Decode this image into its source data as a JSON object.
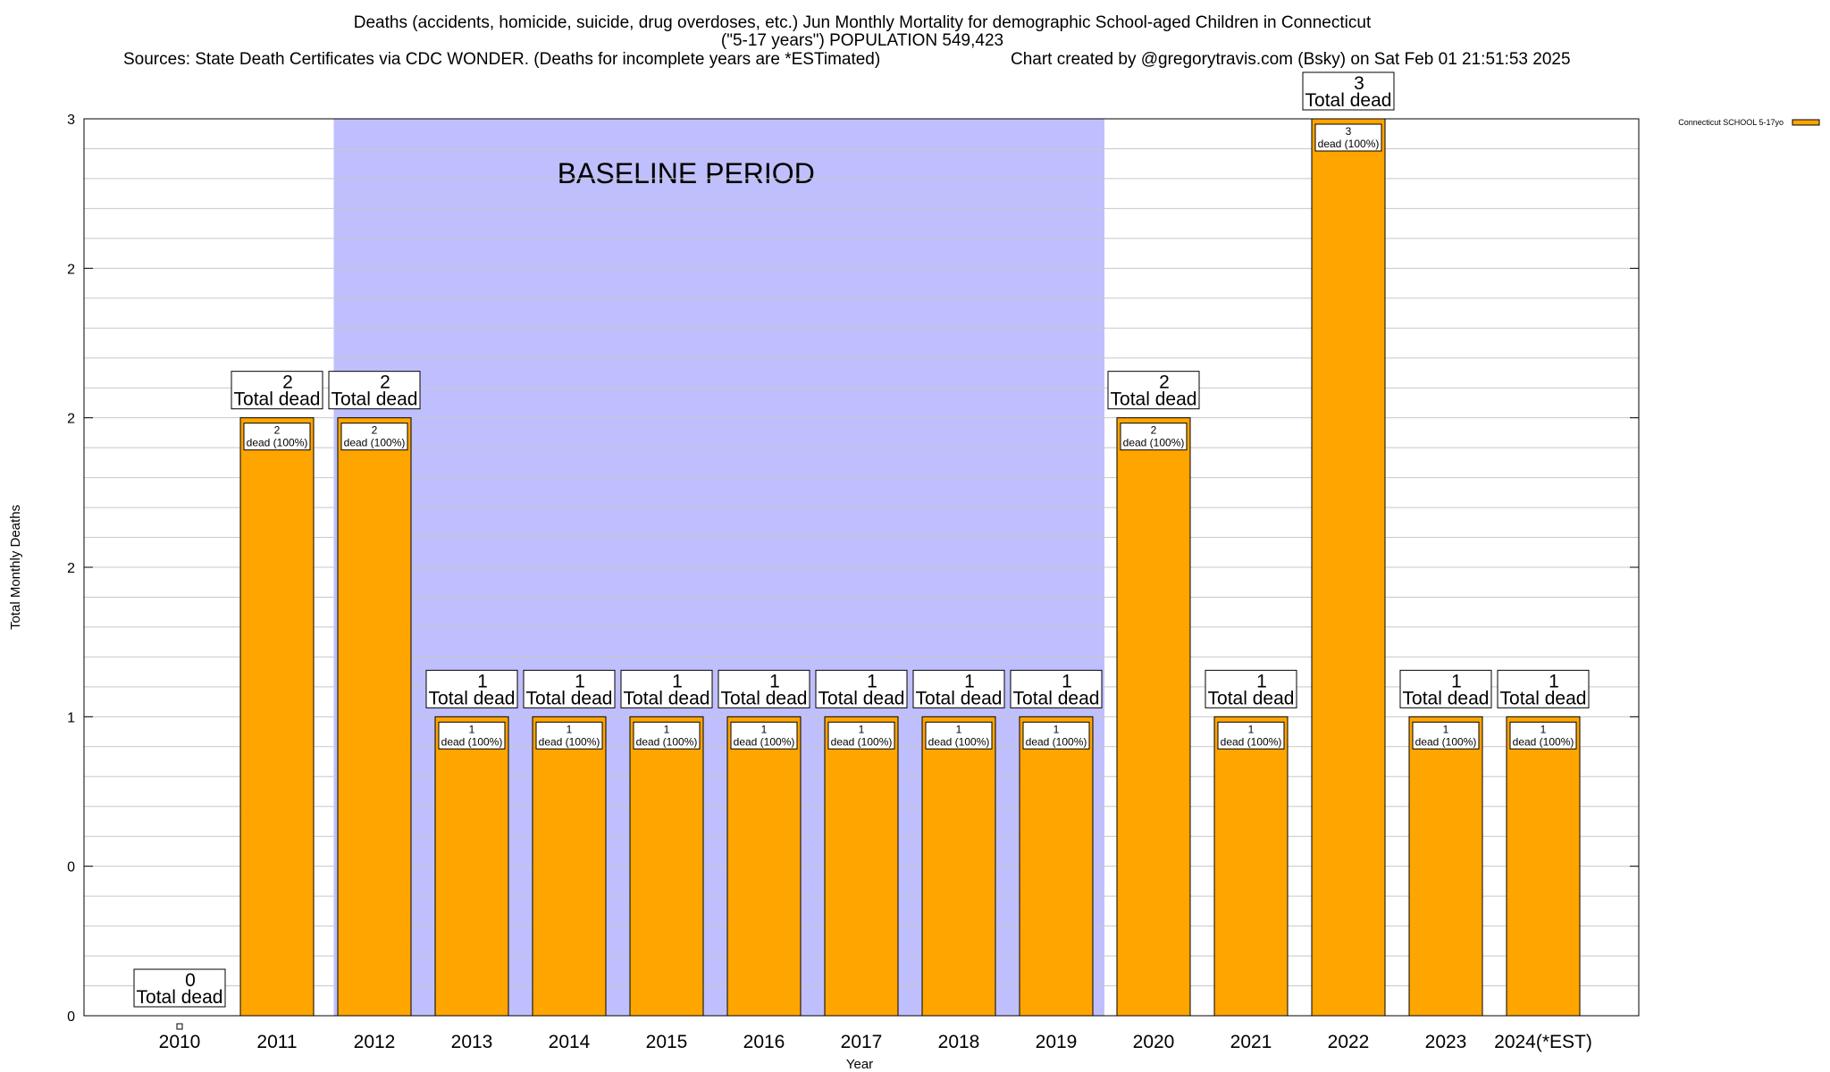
{
  "chart_data": {
    "type": "bar",
    "title": "Deaths (accidents, homicide, suicide, drug overdoses, etc.) Jun Monthly Mortality for demographic School-aged Children in Connecticut",
    "subtitle": "(\"5-17 years\") POPULATION 549,423",
    "sources": "Sources: State Death Certificates via CDC WONDER. (Deaths for incomplete years are *ESTimated)",
    "credit": "Chart created by @gregorytravis.com (Bsky) on Sat Feb 01 21:51:53 2025",
    "xlabel": "Year",
    "ylabel": "Total Monthly Deaths",
    "ylim": [
      0,
      3
    ],
    "y_tick_values": [
      0,
      0.5,
      1,
      1.5,
      2,
      2.5,
      3
    ],
    "y_tick_labels": [
      "0",
      "0",
      "1",
      "2",
      "2",
      "2",
      "3"
    ],
    "grid": true,
    "legend_position": "top-right",
    "categories": [
      "2010",
      "2011",
      "2012",
      "2013",
      "2014",
      "2015",
      "2016",
      "2017",
      "2018",
      "2019",
      "2020",
      "2021",
      "2022",
      "2023",
      "2024(*EST)"
    ],
    "series": [
      {
        "name": "Connecticut SCHOOL 5-17yo",
        "color": "#ffa500",
        "values": [
          0,
          2,
          2,
          1,
          1,
          1,
          1,
          1,
          1,
          1,
          2,
          1,
          3,
          1,
          1
        ]
      }
    ],
    "total_labels": [
      "0",
      "2",
      "2",
      "1",
      "1",
      "1",
      "1",
      "1",
      "1",
      "1",
      "2",
      "1",
      "3",
      "1",
      "1"
    ],
    "total_suffix": "Total dead",
    "inner_labels": [
      "2",
      "2",
      "1",
      "1",
      "1",
      "1",
      "1",
      "1",
      "1",
      "2",
      "1",
      "3",
      "1",
      "1"
    ],
    "inner_suffix": "dead (100%)",
    "region": {
      "label": "BASELINE PERIOD",
      "from": "2012",
      "to": "2019",
      "color": "#bfbffd"
    }
  }
}
